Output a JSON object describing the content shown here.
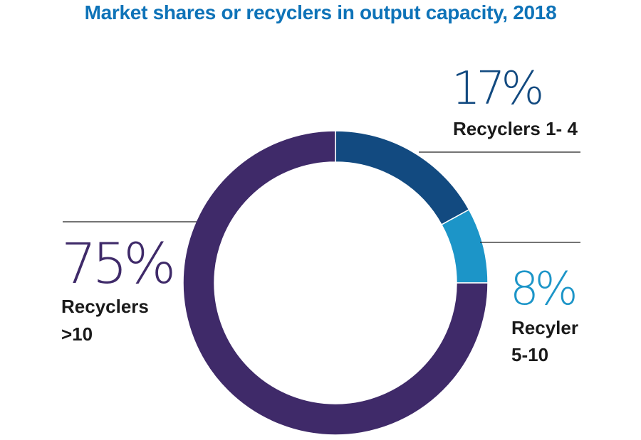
{
  "chart_data": {
    "type": "pie",
    "title": "Market shares or recyclers in output capacity, 2018",
    "slices": [
      {
        "label": "Recyclers 1- 4",
        "label_lines": [
          "Recyclers 1- 4"
        ],
        "value": 17,
        "percent_label": "17%",
        "color": "#124A80"
      },
      {
        "label": "Recyler 5-10",
        "label_lines": [
          "Recyler",
          "5-10"
        ],
        "value": 8,
        "percent_label": "8%",
        "color": "#1C95C8"
      },
      {
        "label": "Recyclers >10",
        "label_lines": [
          "Recyclers",
          ">10"
        ],
        "value": 75,
        "percent_label": "75%",
        "color": "#3F2A69"
      }
    ],
    "donut": true,
    "legend": "none"
  }
}
